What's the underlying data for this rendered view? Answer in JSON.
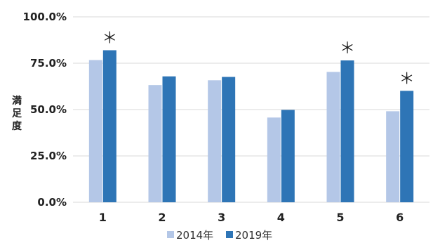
{
  "chart_data": {
    "type": "bar",
    "categories": [
      "1",
      "2",
      "3",
      "4",
      "5",
      "6"
    ],
    "series": [
      {
        "name": "2014年",
        "color": "#b4c7e7",
        "values": [
          76.7,
          63.2,
          65.8,
          45.7,
          70.3,
          49.1
        ]
      },
      {
        "name": "2019年",
        "color": "#2e75b6",
        "values": [
          82.0,
          67.9,
          67.6,
          49.8,
          76.5,
          60.1
        ]
      }
    ],
    "ylabel": "満足度",
    "ylim": [
      0,
      100
    ],
    "yticks": [
      0,
      25,
      50,
      75,
      100
    ],
    "ytick_labels": [
      "0.0%",
      "25.0%",
      "50.0%",
      "75.0%",
      "100.0%"
    ],
    "annotations": [
      {
        "category": "1",
        "text": "＊"
      },
      {
        "category": "5",
        "text": "＊"
      },
      {
        "category": "6",
        "text": "＊"
      }
    ],
    "legend_position": "bottom",
    "grid": true
  }
}
